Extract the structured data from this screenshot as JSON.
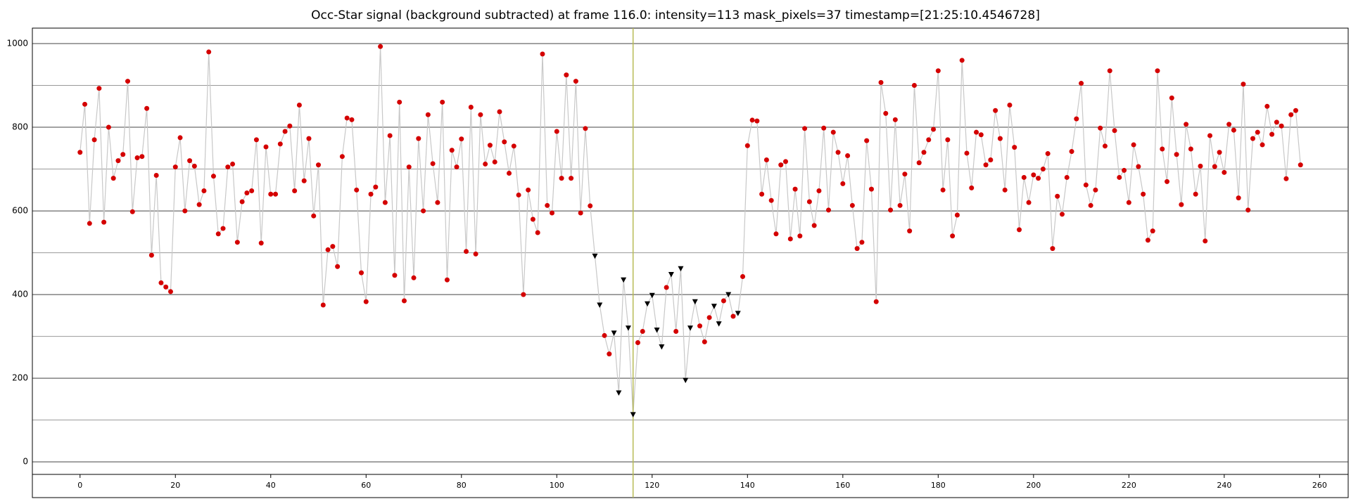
{
  "chart_data": {
    "type": "line",
    "title": "Occ-Star signal (background subtracted) at frame 116.0: intensity=113 mask_pixels=37 timestamp=[21:25:10.4546728]",
    "x": [
      0,
      1,
      2,
      3,
      4,
      5,
      6,
      7,
      8,
      9,
      10,
      11,
      12,
      13,
      14,
      15,
      16,
      17,
      18,
      19,
      20,
      21,
      22,
      23,
      24,
      25,
      26,
      27,
      28,
      29,
      30,
      31,
      32,
      33,
      34,
      35,
      36,
      37,
      38,
      39,
      40,
      41,
      42,
      43,
      44,
      45,
      46,
      47,
      48,
      49,
      50,
      51,
      52,
      53,
      54,
      55,
      56,
      57,
      58,
      59,
      60,
      61,
      62,
      63,
      64,
      65,
      66,
      67,
      68,
      69,
      70,
      71,
      72,
      73,
      74,
      75,
      76,
      77,
      78,
      79,
      80,
      81,
      82,
      83,
      84,
      85,
      86,
      87,
      88,
      89,
      90,
      91,
      92,
      93,
      94,
      95,
      96,
      97,
      98,
      99,
      100,
      101,
      102,
      103,
      104,
      105,
      106,
      107,
      108,
      109,
      110,
      111,
      112,
      113,
      114,
      115,
      116,
      117,
      118,
      119,
      120,
      121,
      122,
      123,
      124,
      125,
      126,
      127,
      128,
      129,
      130,
      131,
      132,
      133,
      134,
      135,
      136,
      137,
      138,
      139,
      140,
      141,
      142,
      143,
      144,
      145,
      146,
      147,
      148,
      149,
      150,
      151,
      152,
      153,
      154,
      155,
      156,
      157,
      158,
      159,
      160,
      161,
      162,
      163,
      164,
      165,
      166,
      167,
      168,
      169,
      170,
      171,
      172,
      173,
      174,
      175,
      176,
      177,
      178,
      179,
      180,
      181,
      182,
      183,
      184,
      185,
      186,
      187,
      188,
      189,
      190,
      191,
      192,
      193,
      194,
      195,
      196,
      197,
      198,
      199,
      200,
      201,
      202,
      203,
      204,
      205,
      206,
      207,
      208,
      209,
      210,
      211,
      212,
      213,
      214,
      215,
      216,
      217,
      218,
      219,
      220,
      221,
      222,
      223,
      224,
      225,
      226,
      227,
      228,
      229,
      230,
      231,
      232,
      233,
      234,
      235,
      236,
      237,
      238,
      239,
      240,
      241,
      242,
      243,
      244,
      245,
      246,
      247,
      248,
      249,
      250,
      251,
      252,
      253,
      254,
      255,
      256
    ],
    "values": [
      740,
      855,
      570,
      770,
      893,
      573,
      800,
      678,
      720,
      735,
      910,
      598,
      727,
      730,
      845,
      494,
      685,
      428,
      418,
      407,
      705,
      775,
      600,
      720,
      707,
      615,
      648,
      980,
      683,
      545,
      558,
      705,
      712,
      525,
      622,
      643,
      648,
      770,
      523,
      753,
      640,
      640,
      760,
      790,
      803,
      648,
      853,
      672,
      773,
      588,
      710,
      375,
      507,
      515,
      467,
      730,
      822,
      818,
      650,
      452,
      383,
      640,
      657,
      993,
      620,
      780,
      446,
      860,
      385,
      705,
      440,
      773,
      600,
      830,
      713,
      620,
      860,
      435,
      745,
      705,
      772,
      503,
      848,
      497,
      830,
      712,
      757,
      717,
      837,
      765,
      690,
      755,
      638,
      400,
      650,
      580,
      548,
      975,
      613,
      595,
      790,
      678,
      925,
      678,
      910,
      595,
      797,
      612,
      492,
      375,
      302,
      258,
      308,
      165,
      435,
      320,
      113,
      285,
      312,
      378,
      398,
      315,
      275,
      417,
      448,
      312,
      462,
      195,
      320,
      383,
      325,
      287,
      345,
      372,
      330,
      385,
      400,
      348,
      355,
      443,
      756,
      817,
      815,
      640,
      722,
      625,
      545,
      710,
      718,
      533,
      652,
      540,
      797,
      622,
      565,
      648,
      798,
      602,
      788,
      740,
      665,
      732,
      613,
      510,
      525,
      768,
      652,
      383,
      907,
      833,
      602,
      818,
      613,
      688,
      552,
      900,
      715,
      740,
      770,
      795,
      935,
      650,
      770,
      540,
      590,
      960,
      738,
      655,
      788,
      782,
      710,
      722,
      840,
      773,
      650,
      853,
      752,
      555,
      680,
      620,
      686,
      678,
      700,
      737,
      510,
      635,
      592,
      680,
      742,
      820,
      905,
      662,
      613,
      650,
      798,
      755,
      935,
      792,
      680,
      697,
      620,
      758,
      706,
      640,
      530,
      552,
      935,
      748,
      670,
      870,
      735,
      615,
      807,
      748,
      640,
      707,
      528,
      780,
      706,
      740,
      692,
      807,
      793,
      631,
      903,
      602,
      773,
      788,
      758,
      850,
      783,
      812,
      803,
      677,
      830,
      840,
      710
    ],
    "triangle_x": [
      108,
      109,
      112,
      113,
      114,
      115,
      116,
      119,
      120,
      121,
      122,
      124,
      126,
      127,
      128,
      129,
      133,
      134,
      136,
      138
    ],
    "cursor_x": 116,
    "line_color": "#c8c8c8",
    "marker_color": "#d40000",
    "triangle_color": "#000000",
    "cursor_color": "#b8bb55",
    "xlim": [
      -10,
      266
    ],
    "ylim": [
      -30,
      1037
    ],
    "xticks": [
      0,
      20,
      40,
      60,
      80,
      100,
      120,
      140,
      160,
      180,
      200,
      220,
      240,
      260
    ],
    "yticks": [
      0,
      200,
      400,
      600,
      800,
      1000
    ],
    "minor_yticks": [
      100,
      300,
      500,
      700,
      900
    ],
    "grid": true
  }
}
